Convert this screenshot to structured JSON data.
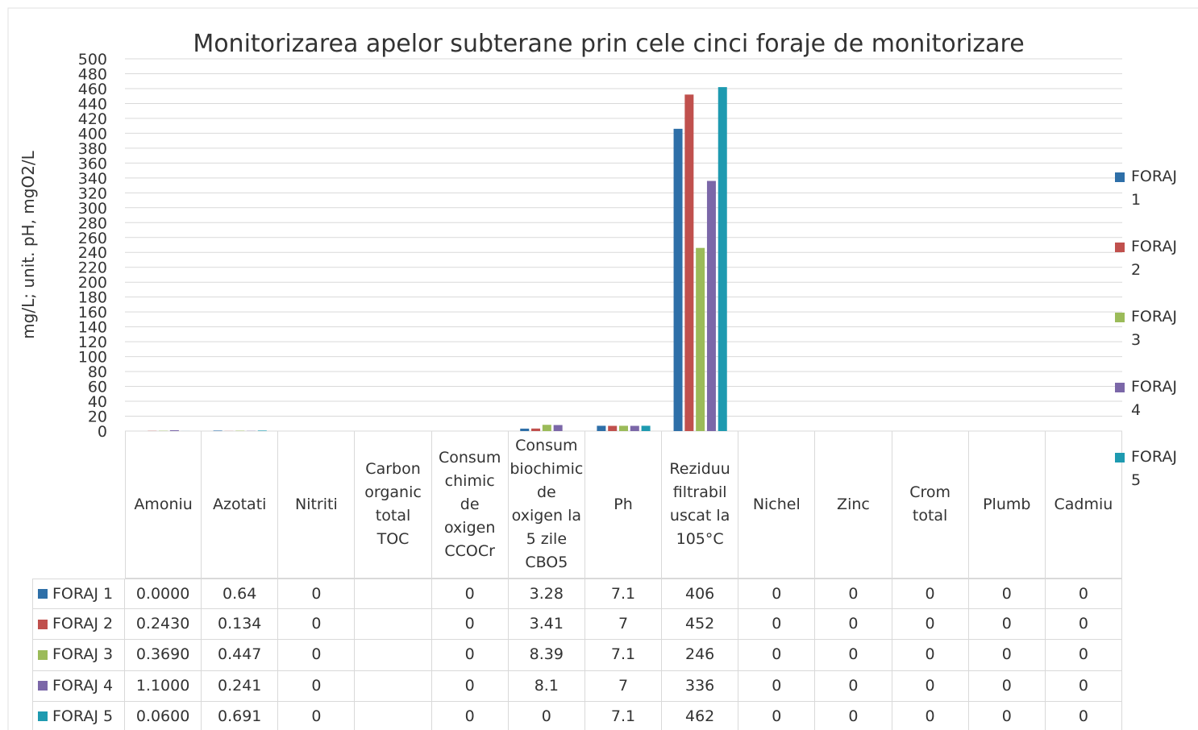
{
  "chart_data": {
    "type": "bar",
    "title": "Monitorizarea apelor subterane prin cele cinci foraje de monitorizare",
    "y_label": "mg/L; unit. pH, mgO2/L",
    "categories": [
      "Amoniu",
      "Azotati",
      "Nitriti",
      "Carbon organic total TOC",
      "Consum chimic de oxigen CCOCr",
      "Consum biochimic de oxigen la 5 zile CBO5",
      "Ph",
      "Reziduu filtrabil uscat la 105°C",
      "Nichel",
      "Zinc",
      "Crom total",
      "Plumb",
      "Cadmiu"
    ],
    "series": [
      {
        "name": "FORAJ 1",
        "color": "#2e6fa8",
        "values": [
          0,
          0.64,
          0,
          null,
          0,
          3.28,
          7.1,
          406,
          0,
          0,
          0,
          0,
          0
        ],
        "value_labels": [
          "0.0000",
          "0.64",
          "0",
          null,
          "0",
          "3.28",
          "7.1",
          "406",
          "0",
          "0",
          "0",
          "0",
          "0"
        ]
      },
      {
        "name": "FORAJ 2",
        "color": "#c0504d",
        "values": [
          0.243,
          0.134,
          0,
          null,
          0,
          3.41,
          7,
          452,
          0,
          0,
          0,
          0,
          0
        ],
        "value_labels": [
          "0.2430",
          "0.134",
          "0",
          null,
          "0",
          "3.41",
          "7",
          "452",
          "0",
          "0",
          "0",
          "0",
          "0"
        ]
      },
      {
        "name": "FORAJ 3",
        "color": "#9bbb59",
        "values": [
          0.369,
          0.447,
          0,
          null,
          0,
          8.39,
          7.1,
          246,
          0,
          0,
          0,
          0,
          0
        ],
        "value_labels": [
          "0.3690",
          "0.447",
          "0",
          null,
          "0",
          "8.39",
          "7.1",
          "246",
          "0",
          "0",
          "0",
          "0",
          "0"
        ]
      },
      {
        "name": "FORAJ 4",
        "color": "#7b67a8",
        "values": [
          1.1,
          0.241,
          0,
          null,
          0,
          8.1,
          7,
          336,
          0,
          0,
          0,
          0,
          0
        ],
        "value_labels": [
          "1.1000",
          "0.241",
          "0",
          null,
          "0",
          "8.1",
          "7",
          "336",
          "0",
          "0",
          "0",
          "0",
          "0"
        ]
      },
      {
        "name": "FORAJ 5",
        "color": "#1e9ab0",
        "values": [
          0.06,
          0.691,
          0,
          null,
          0,
          0,
          7.1,
          462,
          0,
          0,
          0,
          0,
          0
        ],
        "value_labels": [
          "0.0600",
          "0.691",
          "0",
          null,
          "0",
          "0",
          "7.1",
          "462",
          "0",
          "0",
          "0",
          "0",
          "0"
        ]
      }
    ],
    "ylim": [
      0,
      500
    ],
    "yticks": [
      0,
      20,
      40,
      60,
      80,
      100,
      120,
      140,
      160,
      180,
      200,
      220,
      240,
      260,
      280,
      300,
      320,
      340,
      360,
      380,
      400,
      420,
      440,
      460,
      480,
      500
    ],
    "grid": true,
    "legend": "right"
  }
}
